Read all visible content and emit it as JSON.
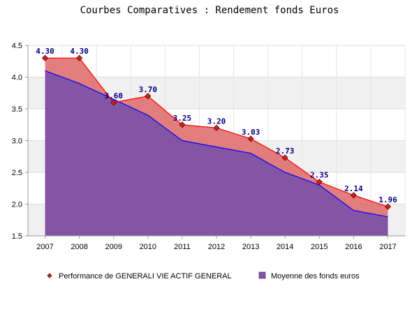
{
  "chart_data": {
    "type": "area",
    "title": "Courbes Comparatives : Rendement fonds Euros",
    "xlabel": "",
    "ylabel": "",
    "x": [
      "2007",
      "2008",
      "2009",
      "2010",
      "2011",
      "2012",
      "2013",
      "2014",
      "2015",
      "2016",
      "2017"
    ],
    "ylim": [
      1.5,
      4.5
    ],
    "yticks": [
      "1.5",
      "2.0",
      "2.5",
      "3.0",
      "3.5",
      "4.0",
      "4.5"
    ],
    "grid": true,
    "legend_position": "bottom",
    "series": [
      {
        "name": "Performance de GENERALI VIE ACTIF GENERAL",
        "values": [
          4.3,
          4.3,
          3.6,
          3.7,
          3.25,
          3.2,
          3.03,
          2.73,
          2.35,
          2.14,
          1.96
        ],
        "labels": [
          "4.30",
          "4.30",
          "3.60",
          "3.70",
          "3.25",
          "3.20",
          "3.03",
          "2.73",
          "2.35",
          "2.14",
          "1.96"
        ],
        "line_color": "#ff0000",
        "fill_color": "#e07070",
        "marker_color": "#cc2222"
      },
      {
        "name": "Moyenne des fonds euros",
        "values": [
          4.1,
          3.9,
          3.65,
          3.4,
          3.0,
          2.9,
          2.8,
          2.5,
          2.3,
          1.9,
          1.8
        ],
        "line_color": "#0000ff",
        "fill_color": "#8255a5"
      }
    ]
  }
}
